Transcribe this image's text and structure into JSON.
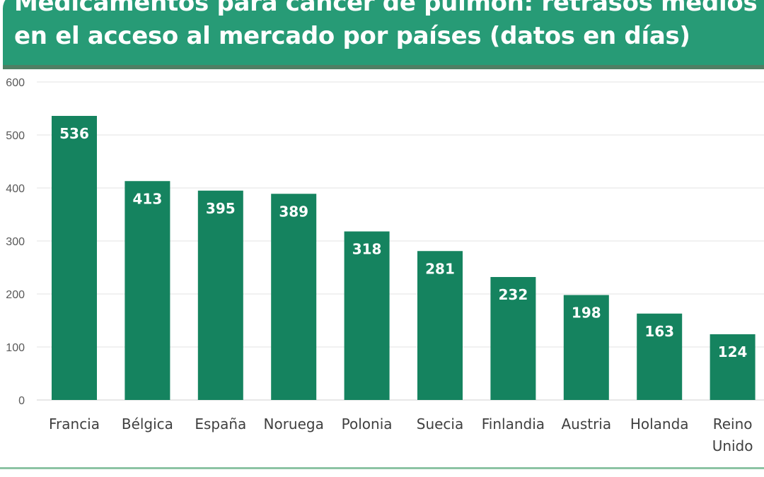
{
  "chart_data": {
    "type": "bar",
    "title": [
      "Medicamentos para cáncer de pulmón: retrasos medios",
      "en el acceso al mercado por países (datos en días)"
    ],
    "categories": [
      "Francia",
      "Bélgica",
      "España",
      "Noruega",
      "Polonia",
      "Suecia",
      "Finlandia",
      "Austria",
      "Holanda",
      "Reino Unido"
    ],
    "values": [
      536,
      413,
      395,
      389,
      318,
      281,
      232,
      198,
      163,
      124
    ],
    "ylim": [
      0,
      600
    ],
    "yticks": [
      0,
      100,
      200,
      300,
      400,
      500,
      600
    ],
    "grid": true,
    "xlabel": "",
    "ylabel": "",
    "bar_color": "#15835f",
    "header_color": "#279b76",
    "data_labels": "inside-top"
  }
}
